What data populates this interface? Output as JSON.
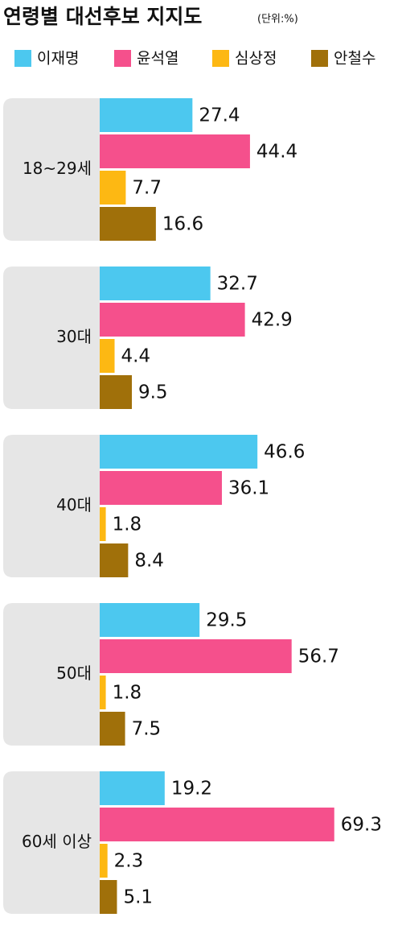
{
  "chart_data": {
    "type": "bar",
    "orientation": "horizontal",
    "title": "연령별 대선후보 지지도",
    "subtitle": "(단위:%)",
    "categories": [
      "18~29세",
      "30대",
      "40대",
      "50대",
      "60세 이상"
    ],
    "series": [
      {
        "name": "이재명",
        "color": "#4cc8ef",
        "values": [
          27.4,
          32.7,
          46.6,
          29.5,
          19.2
        ]
      },
      {
        "name": "윤석열",
        "color": "#f5508c",
        "values": [
          44.4,
          42.9,
          36.1,
          56.7,
          69.3
        ]
      },
      {
        "name": "심상정",
        "color": "#fdb813",
        "values": [
          7.7,
          4.4,
          1.8,
          1.8,
          2.3
        ]
      },
      {
        "name": "안철수",
        "color": "#a0700a",
        "values": [
          16.6,
          9.5,
          8.4,
          7.5,
          5.1
        ]
      }
    ]
  }
}
